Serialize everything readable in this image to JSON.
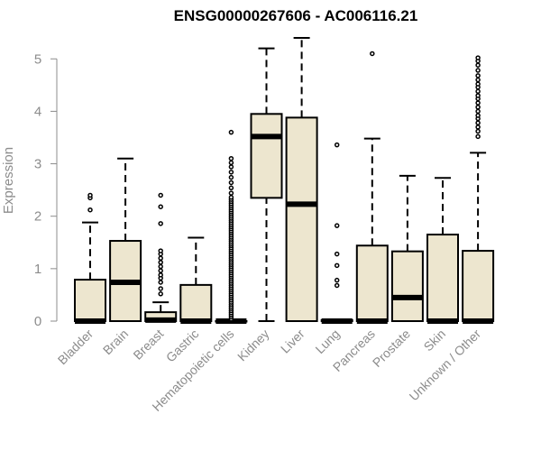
{
  "chart_data": {
    "type": "boxplot",
    "title": "ENSG00000267606 - AC006116.21",
    "ylabel": "Expression",
    "xlabel": "",
    "ylim": [
      0,
      5.4
    ],
    "y_ticks": [
      0,
      1,
      2,
      3,
      4,
      5
    ],
    "grid": false,
    "colors": {
      "box_fill": "#ede6cf",
      "box_stroke": "#000000",
      "axis": "#8c8c8c",
      "title": "#000000"
    },
    "categories": [
      "Bladder",
      "Brain",
      "Breast",
      "Gastric",
      "Hematopoietic cells",
      "Kidney",
      "Liver",
      "Lung",
      "Pancreas",
      "Prostate",
      "Skin",
      "Unknown / Other"
    ],
    "boxes": [
      {
        "category": "Bladder",
        "q1": 0,
        "median": 0,
        "q3": 0.79,
        "whisker_low": 0,
        "whisker_high": 1.88,
        "outliers": [
          2.12,
          2.35,
          2.4
        ]
      },
      {
        "category": "Brain",
        "q1": 0,
        "median": 0.74,
        "q3": 1.53,
        "whisker_low": 0,
        "whisker_high": 3.1,
        "outliers": []
      },
      {
        "category": "Breast",
        "q1": 0,
        "median": 0.02,
        "q3": 0.17,
        "whisker_low": 0,
        "whisker_high": 0.36,
        "outliers": [
          0.52,
          0.62,
          0.74,
          0.82,
          0.88,
          0.96,
          1.04,
          1.12,
          1.2,
          1.28,
          1.34,
          1.86,
          2.18,
          2.4
        ]
      },
      {
        "category": "Gastric",
        "q1": 0,
        "median": 0,
        "q3": 0.69,
        "whisker_low": 0,
        "whisker_high": 1.59,
        "outliers": []
      },
      {
        "category": "Hematopoietic cells",
        "q1": 0,
        "median": 0,
        "q3": 0,
        "whisker_low": 0,
        "whisker_high": 0,
        "outliers": [
          0.04,
          0.08,
          0.12,
          0.16,
          0.2,
          0.24,
          0.28,
          0.32,
          0.36,
          0.4,
          0.44,
          0.48,
          0.52,
          0.56,
          0.6,
          0.64,
          0.68,
          0.72,
          0.76,
          0.8,
          0.84,
          0.88,
          0.92,
          0.96,
          1.0,
          1.04,
          1.08,
          1.12,
          1.16,
          1.2,
          1.24,
          1.28,
          1.32,
          1.36,
          1.4,
          1.44,
          1.48,
          1.52,
          1.56,
          1.6,
          1.64,
          1.68,
          1.72,
          1.76,
          1.8,
          1.84,
          1.88,
          1.92,
          1.96,
          2.0,
          2.04,
          2.08,
          2.12,
          2.16,
          2.2,
          2.24,
          2.28,
          2.32,
          2.36,
          2.44,
          2.54,
          2.64,
          2.74,
          2.84,
          2.94,
          3.02,
          3.1,
          3.6
        ]
      },
      {
        "category": "Kidney",
        "q1": 2.35,
        "median": 3.52,
        "q3": 3.95,
        "whisker_low": 0,
        "whisker_high": 5.2,
        "outliers": []
      },
      {
        "category": "Liver",
        "q1": 0,
        "median": 2.23,
        "q3": 3.88,
        "whisker_low": 0,
        "whisker_high": 5.4,
        "outliers": []
      },
      {
        "category": "Lung",
        "q1": 0,
        "median": 0,
        "q3": 0.02,
        "whisker_low": 0,
        "whisker_high": 0.02,
        "outliers": [
          0.68,
          0.78,
          1.06,
          1.28,
          1.82,
          3.36
        ]
      },
      {
        "category": "Pancreas",
        "q1": 0,
        "median": 0,
        "q3": 1.44,
        "whisker_low": 0,
        "whisker_high": 3.48,
        "outliers": [
          5.1
        ]
      },
      {
        "category": "Prostate",
        "q1": 0,
        "median": 0.45,
        "q3": 1.33,
        "whisker_low": 0,
        "whisker_high": 2.77,
        "outliers": []
      },
      {
        "category": "Skin",
        "q1": 0,
        "median": 0,
        "q3": 1.65,
        "whisker_low": 0,
        "whisker_high": 2.73,
        "outliers": []
      },
      {
        "category": "Unknown / Other",
        "q1": 0,
        "median": 0,
        "q3": 1.34,
        "whisker_low": 0,
        "whisker_high": 3.21,
        "outliers": [
          3.52,
          3.62,
          3.7,
          3.78,
          3.86,
          3.92,
          4.0,
          4.08,
          4.16,
          4.24,
          4.3,
          4.38,
          4.46,
          4.52,
          4.6,
          4.68,
          4.78,
          4.88,
          4.96,
          5.02
        ]
      }
    ]
  }
}
